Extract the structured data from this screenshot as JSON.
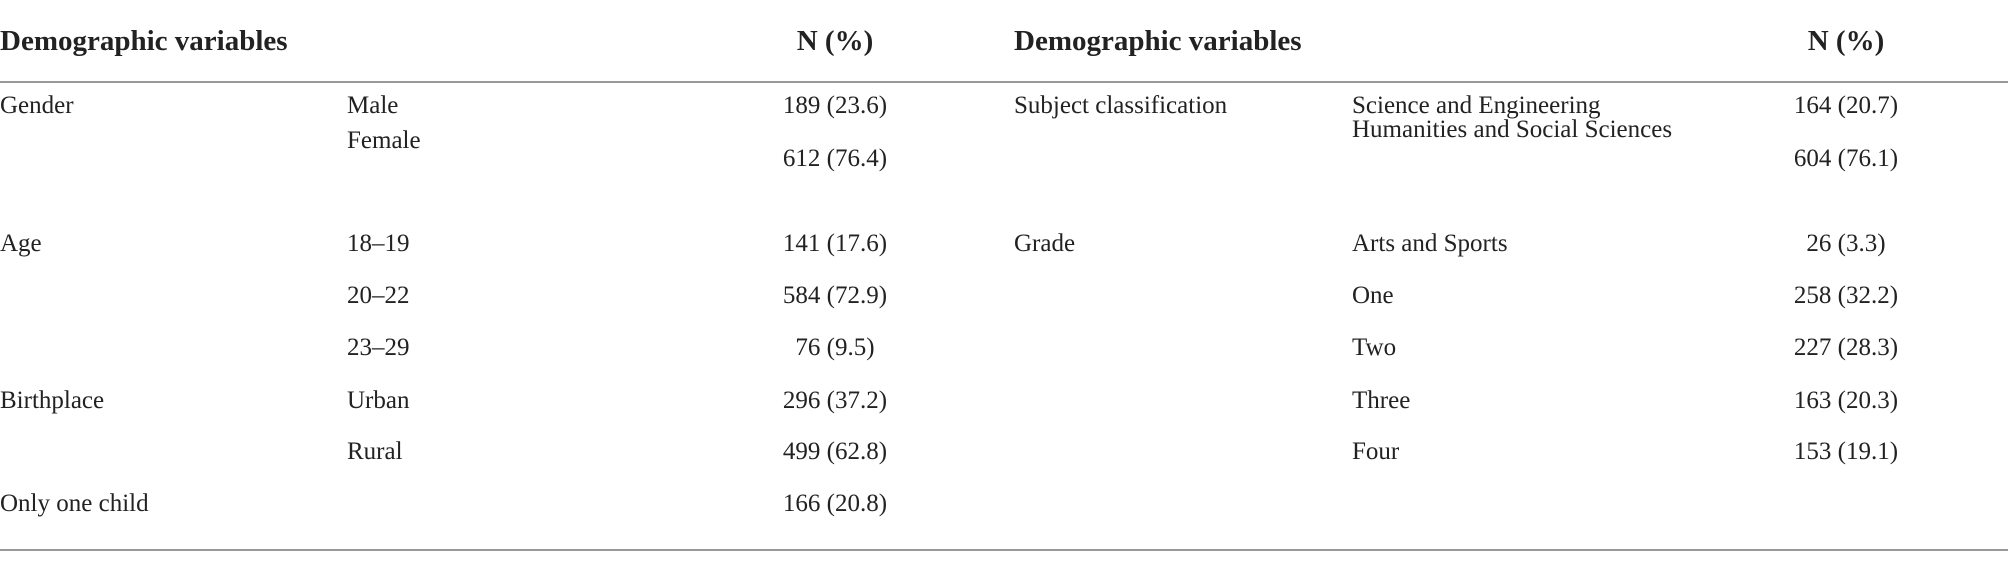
{
  "header": {
    "left_title": "Demographic variables",
    "left_n": "N (%)",
    "right_title": "Demographic variables",
    "right_n": "N (%)"
  },
  "left_groups": [
    {
      "variable": "Gender",
      "items": [
        {
          "level": "Male",
          "n": "189 (23.6)"
        },
        {
          "level": "Female",
          "n": "612 (76.4)"
        }
      ]
    },
    {
      "variable": "Age",
      "items": [
        {
          "level": "18–19",
          "n": "141 (17.6)"
        },
        {
          "level": "20–22",
          "n": "584 (72.9)"
        },
        {
          "level": "23–29",
          "n": "76 (9.5)"
        }
      ]
    },
    {
      "variable": "Birthplace",
      "items": [
        {
          "level": "Urban",
          "n": "296 (37.2)"
        },
        {
          "level": "Rural",
          "n": "499 (62.8)"
        }
      ]
    },
    {
      "variable": "Only one child",
      "items": [
        {
          "n": "166 (20.8)"
        }
      ]
    }
  ],
  "right_groups": [
    {
      "variable": "Subject classification",
      "items": [
        {
          "level": "Science and Engineering",
          "n": "164 (20.7)"
        },
        {
          "level": "Humanities and Social Sciences",
          "n": "604 (76.1)"
        }
      ]
    },
    {
      "variable": "Grade",
      "items": [
        {
          "level": "Arts and Sports",
          "n": "26 (3.3)"
        },
        {
          "level": "One",
          "n": "258 (32.2)"
        },
        {
          "level": "Two",
          "n": "227 (28.3)"
        },
        {
          "level": "Three",
          "n": "163 (20.3)"
        },
        {
          "level": "Four",
          "n": "153 (19.1)"
        }
      ]
    }
  ]
}
